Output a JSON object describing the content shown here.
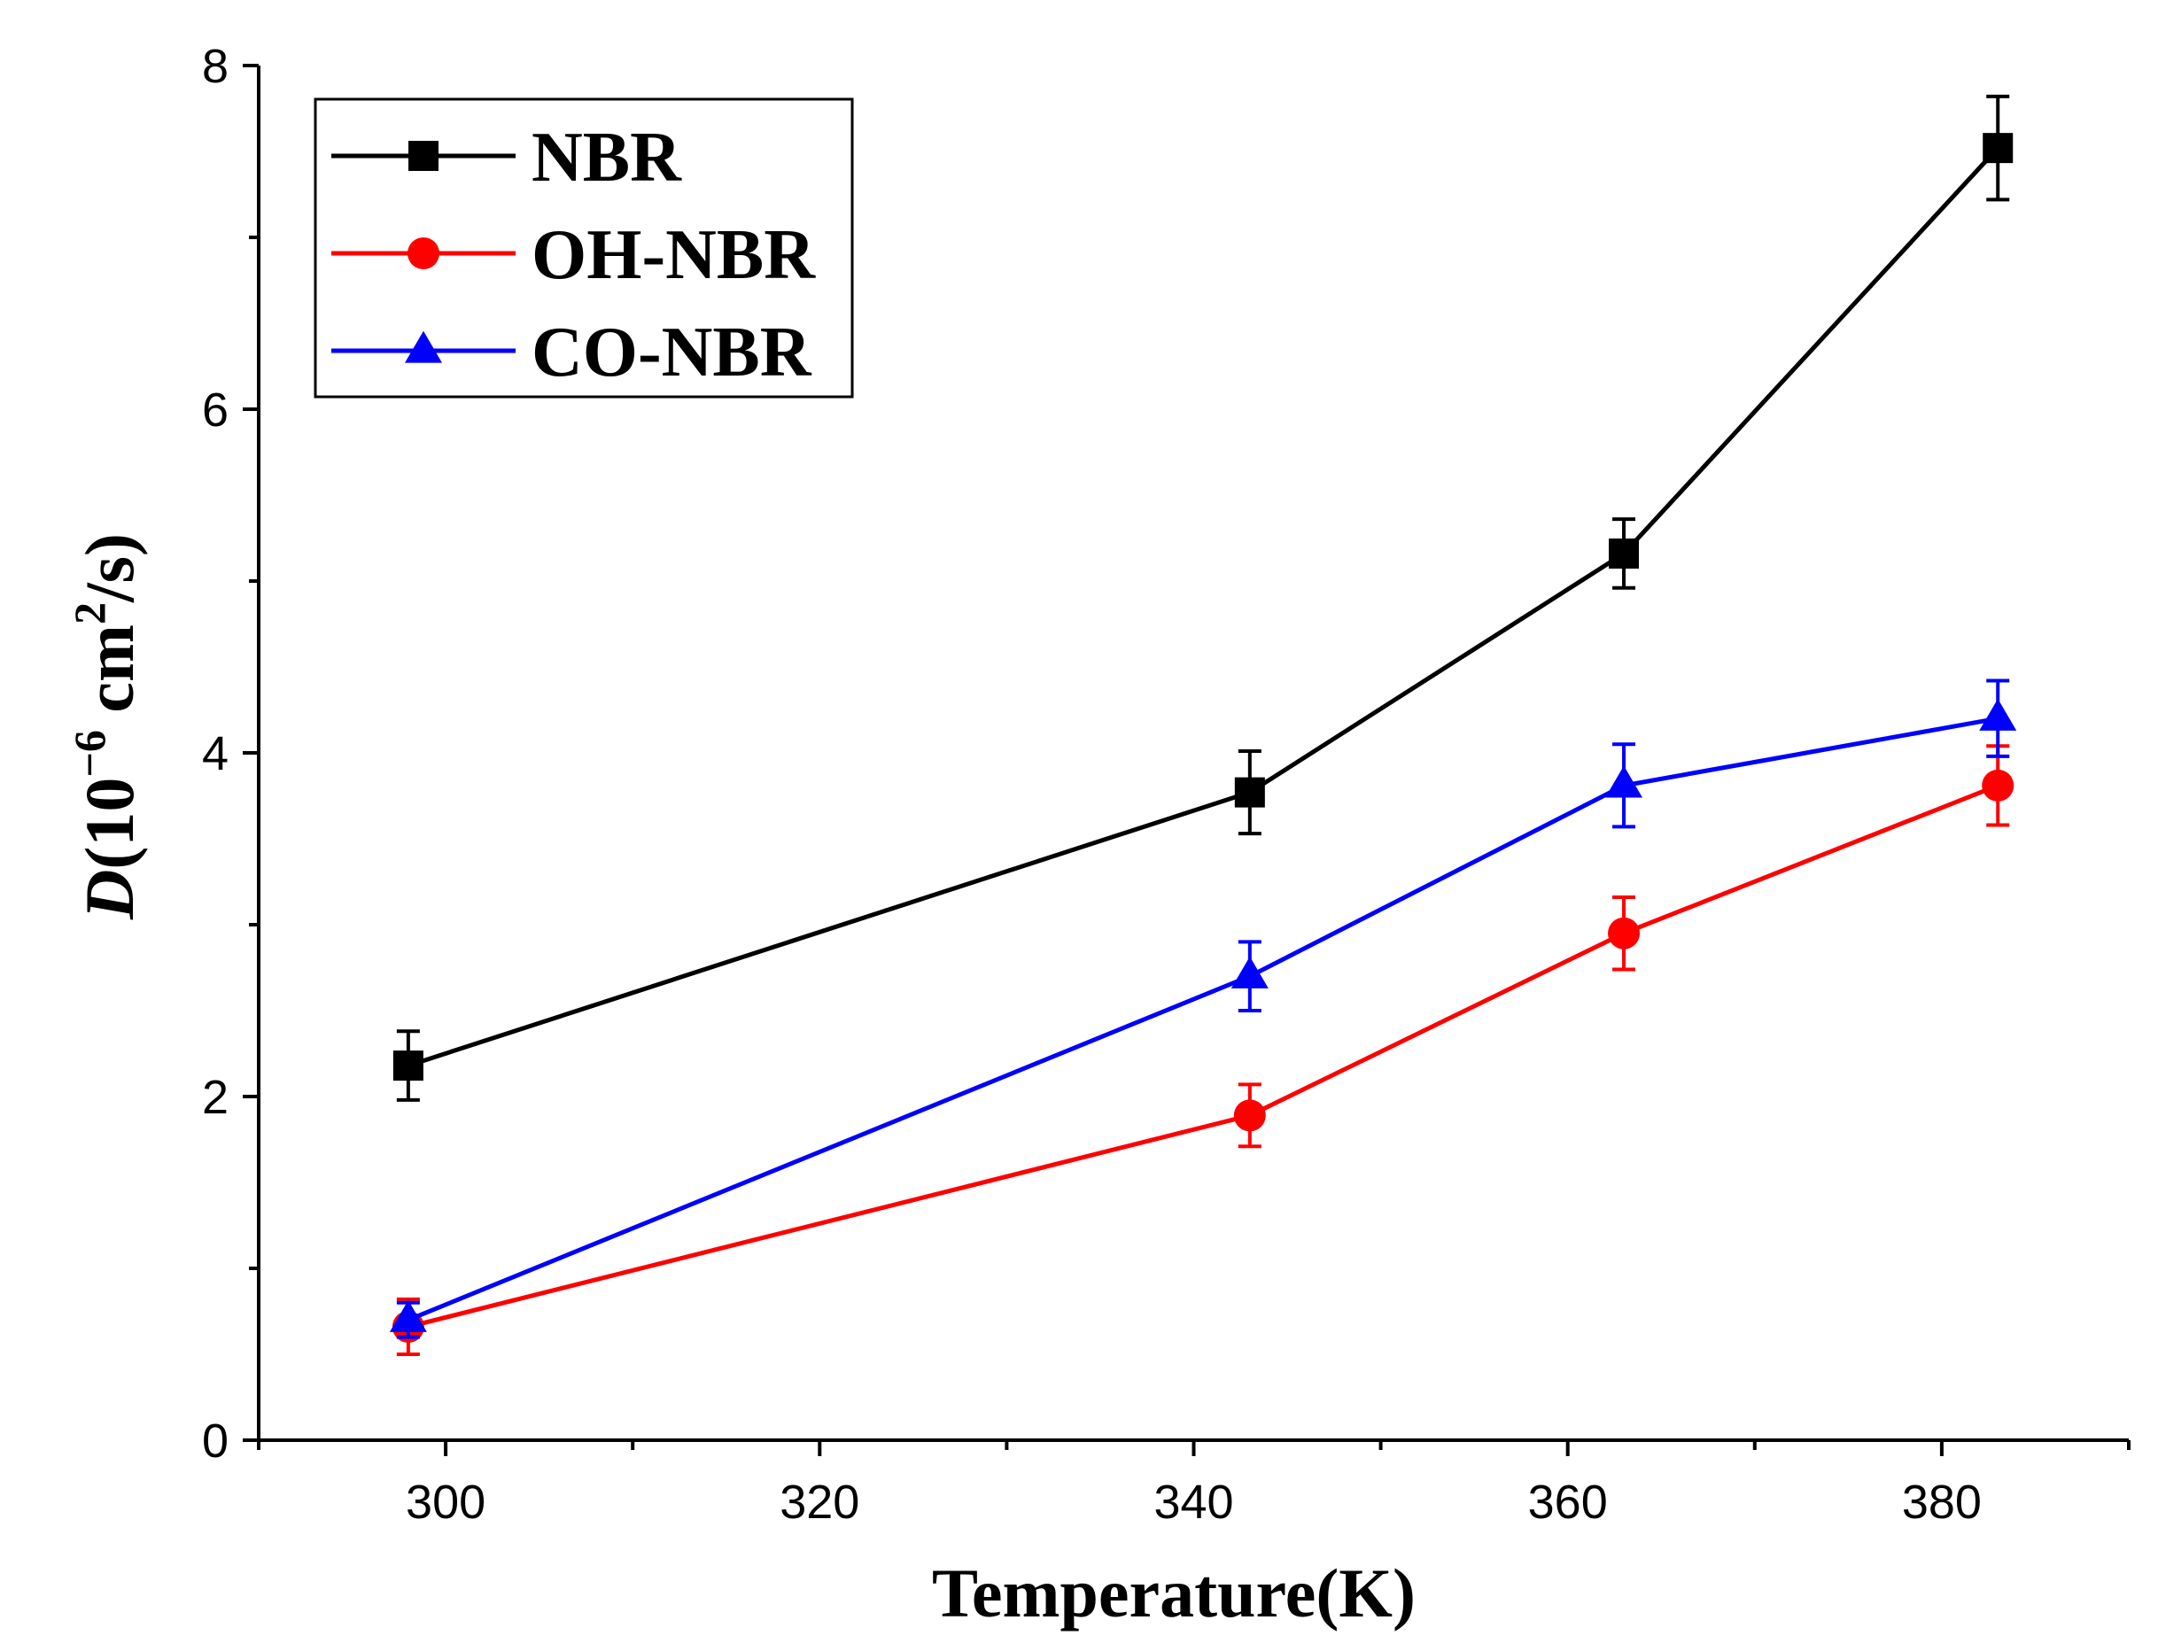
{
  "chart_data": {
    "type": "line",
    "title": "",
    "xlabel": "Temperature(K)",
    "ylabel": {
      "symbol": "D",
      "prefix": "(10",
      "exponent": "−6",
      "unit_base": " cm",
      "unit_exp": "2",
      "suffix": "/s)"
    },
    "xlim": [
      290,
      390
    ],
    "ylim": [
      0,
      8
    ],
    "x_major_ticks": [
      300,
      320,
      340,
      360,
      380
    ],
    "x_minor_ticks": [
      290,
      310,
      330,
      350,
      370,
      390
    ],
    "y_major_ticks": [
      0,
      2,
      4,
      6,
      8
    ],
    "y_minor_ticks": [
      1,
      3,
      5,
      7
    ],
    "x_tick_labels": [
      "300",
      "320",
      "340",
      "360",
      "380"
    ],
    "y_tick_labels": [
      "0",
      "2",
      "4",
      "6",
      "8"
    ],
    "grid": false,
    "legend_position": "top-left",
    "series": [
      {
        "name": "NBR",
        "color": "#000000",
        "marker": "square",
        "x": [
          298,
          343,
          363,
          383
        ],
        "values": [
          2.18,
          3.77,
          5.16,
          7.52
        ],
        "errors": [
          0.2,
          0.24,
          0.2,
          0.3
        ]
      },
      {
        "name": "OH-NBR",
        "color": "#ff0000",
        "marker": "circle",
        "x": [
          298,
          343,
          363,
          383
        ],
        "values": [
          0.66,
          1.89,
          2.95,
          3.81
        ],
        "errors": [
          0.16,
          0.18,
          0.21,
          0.23
        ]
      },
      {
        "name": "CO-NBR",
        "color": "#0000ff",
        "marker": "triangle",
        "x": [
          298,
          343,
          363,
          383
        ],
        "values": [
          0.7,
          2.7,
          3.81,
          4.2
        ],
        "errors": [
          0.1,
          0.2,
          0.24,
          0.22
        ]
      }
    ]
  }
}
